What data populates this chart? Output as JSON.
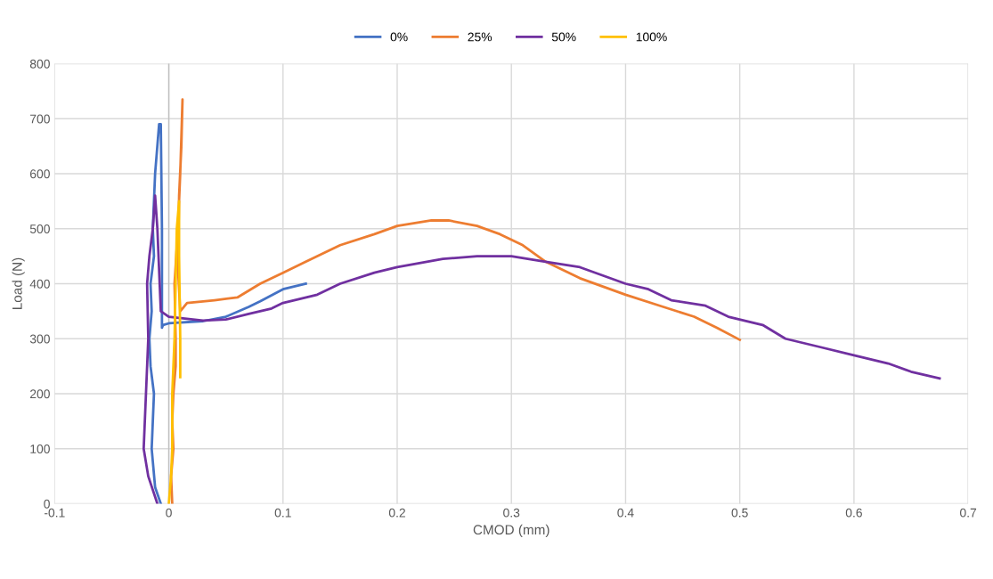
{
  "chart_data": {
    "type": "line",
    "xlabel": "CMOD (mm)",
    "ylabel": "Load (N)",
    "xlim": [
      -0.1,
      0.7
    ],
    "xticks": [
      -0.1,
      0,
      0.1,
      0.2,
      0.3,
      0.4,
      0.5,
      0.6,
      0.7
    ],
    "ylim": [
      0,
      800
    ],
    "yticks": [
      0,
      100,
      200,
      300,
      400,
      500,
      600,
      700,
      800
    ],
    "grid": true,
    "legend": "top",
    "marker": "none",
    "line_style": "solid",
    "series": [
      {
        "name": "0%",
        "color": "#4472c4",
        "x": [
          -0.007,
          -0.012,
          -0.015,
          -0.014,
          -0.013,
          -0.016,
          -0.017,
          -0.015,
          -0.016,
          -0.013,
          -0.014,
          -0.012,
          -0.0085,
          -0.007,
          -0.006,
          -0.006,
          -0.005,
          0.0,
          0.03,
          0.05,
          0.07,
          0.08,
          0.1,
          0.12
        ],
        "values": [
          0,
          30,
          100,
          150,
          200,
          250,
          300,
          350,
          400,
          450,
          500,
          600,
          690,
          690,
          500,
          320,
          325,
          328,
          332,
          340,
          358,
          368,
          390,
          400
        ]
      },
      {
        "name": "25%",
        "color": "#ed7d31",
        "x": [
          0.003,
          0.002,
          0.004,
          0.003,
          0.004,
          0.006,
          0.006,
          0.005,
          0.008,
          0.01,
          0.012,
          0.011,
          0.009,
          0.008,
          0.01,
          0.012,
          0.016,
          0.04,
          0.06,
          0.08,
          0.1,
          0.12,
          0.15,
          0.18,
          0.2,
          0.23,
          0.245,
          0.27,
          0.29,
          0.31,
          0.33,
          0.36,
          0.4,
          0.43,
          0.46,
          0.48,
          0.5
        ],
        "values": [
          0,
          50,
          100,
          150,
          200,
          250,
          300,
          400,
          500,
          600,
          735,
          650,
          560,
          430,
          350,
          355,
          365,
          370,
          375,
          400,
          420,
          440,
          470,
          490,
          505,
          515,
          515,
          505,
          490,
          470,
          440,
          410,
          380,
          360,
          340,
          320,
          298
        ]
      },
      {
        "name": "50%",
        "color": "#7030a0",
        "x": [
          -0.01,
          -0.018,
          -0.022,
          -0.021,
          -0.02,
          -0.019,
          -0.018,
          -0.019,
          -0.017,
          -0.014,
          -0.012,
          -0.01,
          -0.008,
          -0.007,
          0.0,
          0.03,
          0.05,
          0.07,
          0.09,
          0.1,
          0.13,
          0.15,
          0.18,
          0.2,
          0.24,
          0.27,
          0.3,
          0.33,
          0.36,
          0.38,
          0.4,
          0.42,
          0.44,
          0.47,
          0.49,
          0.52,
          0.54,
          0.57,
          0.6,
          0.63,
          0.65,
          0.675
        ],
        "values": [
          0,
          50,
          100,
          150,
          200,
          250,
          300,
          400,
          450,
          500,
          560,
          500,
          400,
          350,
          340,
          333,
          335,
          345,
          355,
          365,
          380,
          400,
          420,
          430,
          445,
          450,
          450,
          440,
          430,
          415,
          400,
          390,
          370,
          360,
          340,
          325,
          300,
          285,
          270,
          255,
          240,
          228
        ]
      },
      {
        "name": "100%",
        "color": "#ffc000",
        "x": [
          0.0,
          0.002,
          0.003,
          0.003,
          0.005,
          0.006,
          0.007,
          0.009,
          0.009,
          0.01,
          0.01
        ],
        "values": [
          0,
          50,
          100,
          200,
          300,
          400,
          500,
          550,
          450,
          300,
          230
        ]
      }
    ]
  }
}
